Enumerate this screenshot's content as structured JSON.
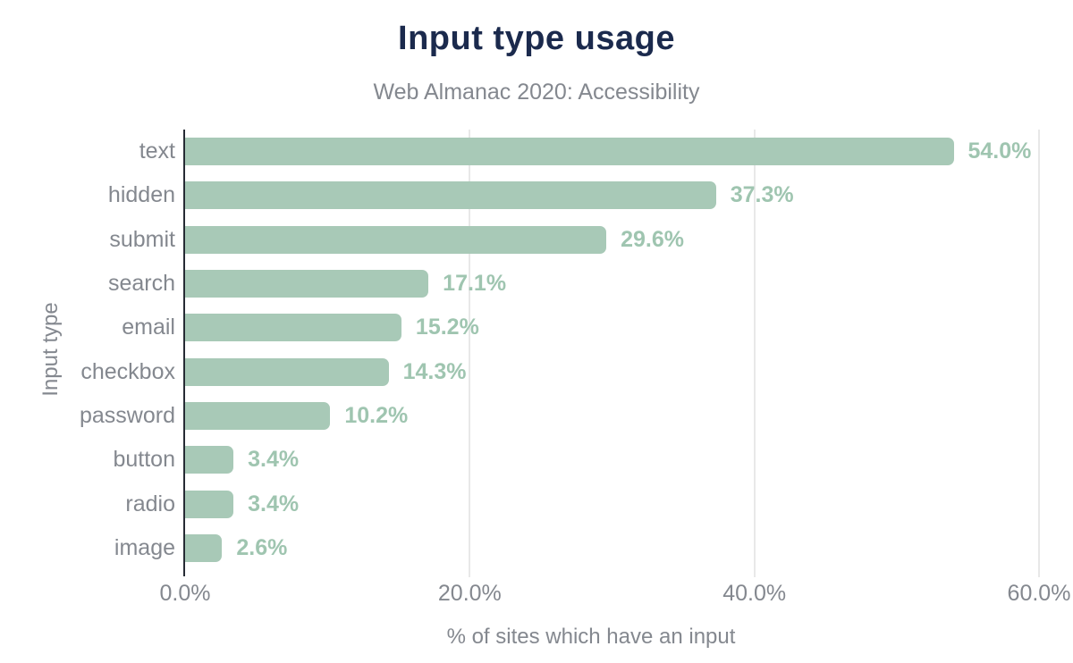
{
  "chart_data": {
    "type": "bar",
    "orientation": "horizontal",
    "title": "Input type usage",
    "subtitle": "Web Almanac 2020: Accessibility",
    "categories": [
      "text",
      "hidden",
      "submit",
      "search",
      "email",
      "checkbox",
      "password",
      "button",
      "radio",
      "image"
    ],
    "values": [
      54.0,
      37.3,
      29.6,
      17.1,
      15.2,
      14.3,
      10.2,
      3.4,
      3.4,
      2.6
    ],
    "value_labels": [
      "54.0%",
      "37.3%",
      "29.6%",
      "17.1%",
      "15.2%",
      "14.3%",
      "10.2%",
      "3.4%",
      "3.4%",
      "2.6%"
    ],
    "xlabel": "% of sites which have an input",
    "ylabel": "Input type",
    "xlim": [
      0,
      60
    ],
    "x_tick_values": [
      0,
      20,
      40,
      60
    ],
    "x_tick_labels": [
      "0.0%",
      "20.0%",
      "40.0%",
      "60.0%"
    ],
    "grid": "vertical-gridlines-at-20-40-60",
    "legend": "none",
    "colors": {
      "bar": "#a8c9b7",
      "value_label": "#9fc5b0",
      "title": "#1b2a4d",
      "axis_text": "#84888f",
      "axis_line": "#262b34",
      "gridline": "#e8e8e8",
      "background": "#ffffff"
    }
  }
}
